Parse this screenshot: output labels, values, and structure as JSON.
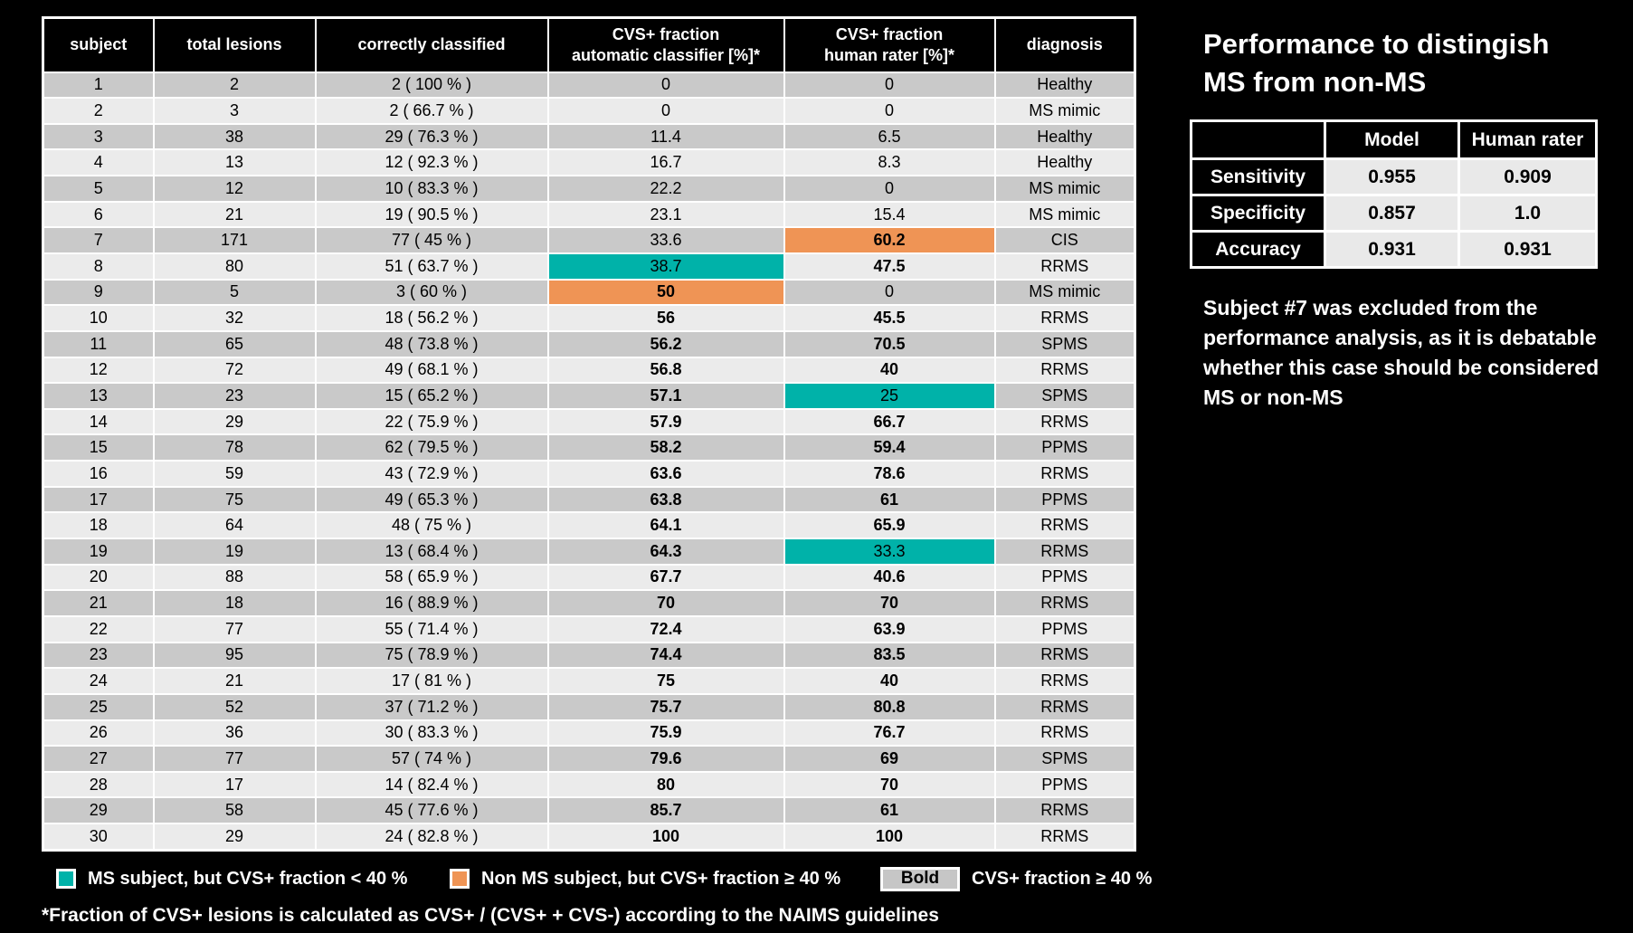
{
  "colors": {
    "teal": "#00b2a9",
    "orange": "#ef9455",
    "row_dark": "#c9c9c9",
    "row_light": "#ebebeb",
    "perf_cell_bg": "#e9e9e9",
    "bold_box_bg": "#c6c6c6"
  },
  "main_table": {
    "display_headers": [
      "subject",
      "total lesions",
      "correctly classified",
      "CVS+ fraction\nautomatic classifier [%]*",
      "CVS+ fraction\nhuman rater [%]*",
      "diagnosis"
    ],
    "cell_styles": [
      [
        "",
        ""
      ],
      [
        "",
        ""
      ],
      [
        "",
        ""
      ],
      [
        "",
        ""
      ],
      [
        "",
        ""
      ],
      [
        "",
        ""
      ],
      [
        "",
        "orange"
      ],
      [
        "teal",
        "b"
      ],
      [
        "orange",
        ""
      ],
      [
        "b",
        "b"
      ],
      [
        "b",
        "b"
      ],
      [
        "b",
        "b"
      ],
      [
        "b",
        "teal"
      ],
      [
        "b",
        "b"
      ],
      [
        "b",
        "b"
      ],
      [
        "b",
        "b"
      ],
      [
        "b",
        "b"
      ],
      [
        "b",
        "b"
      ],
      [
        "b",
        "teal"
      ],
      [
        "b",
        "b"
      ],
      [
        "b",
        "b"
      ],
      [
        "b",
        "b"
      ],
      [
        "b",
        "b"
      ],
      [
        "b",
        "b"
      ],
      [
        "b",
        "b"
      ],
      [
        "b",
        "b"
      ],
      [
        "b",
        "b"
      ],
      [
        "b",
        "b"
      ],
      [
        "b",
        "b"
      ],
      [
        "b",
        "b"
      ]
    ]
  },
  "legend": {
    "teal_label": "MS subject, but CVS+ fraction < 40 %",
    "orange_label": "Non MS subject, but CVS+ fraction ≥ 40 %",
    "bold_box_label": "Bold",
    "bold_label": "CVS+ fraction ≥ 40 %"
  },
  "footnote": "*Fraction of CVS+ lesions is calculated as CVS+ / (CVS+ + CVS-) according to the NAIMS guidelines",
  "side_panel": {
    "title": "Performance to distingish\nMS from non-MS",
    "note": "Subject #7 was excluded from the\nperformance analysis, as it is debatable\nwhether this case should be considered\nMS or non-MS"
  },
  "chart_data": [
    {
      "type": "table",
      "title": "CVS+ fraction per subject",
      "columns": [
        "subject",
        "total lesions",
        "correctly classified",
        "CVS+ fraction automatic classifier [%]*",
        "CVS+ fraction human rater [%]*",
        "diagnosis"
      ],
      "rows": [
        [
          1,
          2,
          "2 ( 100 % )",
          0,
          0,
          "Healthy"
        ],
        [
          2,
          3,
          "2 ( 66.7 % )",
          0,
          0,
          "MS mimic"
        ],
        [
          3,
          38,
          "29 ( 76.3 % )",
          11.4,
          6.5,
          "Healthy"
        ],
        [
          4,
          13,
          "12 ( 92.3 % )",
          16.7,
          8.3,
          "Healthy"
        ],
        [
          5,
          12,
          "10 ( 83.3 % )",
          22.2,
          0,
          "MS mimic"
        ],
        [
          6,
          21,
          "19 ( 90.5 % )",
          23.1,
          15.4,
          "MS mimic"
        ],
        [
          7,
          171,
          "77 ( 45 % )",
          33.6,
          60.2,
          "CIS"
        ],
        [
          8,
          80,
          "51 ( 63.7 % )",
          38.7,
          47.5,
          "RRMS"
        ],
        [
          9,
          5,
          "3 ( 60 % )",
          50,
          0,
          "MS mimic"
        ],
        [
          10,
          32,
          "18 ( 56.2 % )",
          56,
          45.5,
          "RRMS"
        ],
        [
          11,
          65,
          "48 ( 73.8 % )",
          56.2,
          70.5,
          "SPMS"
        ],
        [
          12,
          72,
          "49 ( 68.1 % )",
          56.8,
          40,
          "RRMS"
        ],
        [
          13,
          23,
          "15 ( 65.2 % )",
          57.1,
          25,
          "SPMS"
        ],
        [
          14,
          29,
          "22 ( 75.9 % )",
          57.9,
          66.7,
          "RRMS"
        ],
        [
          15,
          78,
          "62 ( 79.5 % )",
          58.2,
          59.4,
          "PPMS"
        ],
        [
          16,
          59,
          "43 ( 72.9 % )",
          63.6,
          78.6,
          "RRMS"
        ],
        [
          17,
          75,
          "49 ( 65.3 % )",
          63.8,
          61,
          "PPMS"
        ],
        [
          18,
          64,
          "48 ( 75 % )",
          64.1,
          65.9,
          "RRMS"
        ],
        [
          19,
          19,
          "13 ( 68.4 % )",
          64.3,
          33.3,
          "RRMS"
        ],
        [
          20,
          88,
          "58 ( 65.9 % )",
          67.7,
          40.6,
          "PPMS"
        ],
        [
          21,
          18,
          "16 ( 88.9 % )",
          70,
          70,
          "RRMS"
        ],
        [
          22,
          77,
          "55 ( 71.4 % )",
          72.4,
          63.9,
          "PPMS"
        ],
        [
          23,
          95,
          "75 ( 78.9 % )",
          74.4,
          83.5,
          "RRMS"
        ],
        [
          24,
          21,
          "17 ( 81 % )",
          75,
          40,
          "RRMS"
        ],
        [
          25,
          52,
          "37 ( 71.2 % )",
          75.7,
          80.8,
          "RRMS"
        ],
        [
          26,
          36,
          "30 ( 83.3 % )",
          75.9,
          76.7,
          "RRMS"
        ],
        [
          27,
          77,
          "57 ( 74 % )",
          79.6,
          69,
          "SPMS"
        ],
        [
          28,
          17,
          "14 ( 82.4 % )",
          80,
          70,
          "PPMS"
        ],
        [
          29,
          58,
          "45 ( 77.6 % )",
          85.7,
          61,
          "RRMS"
        ],
        [
          30,
          29,
          "24 ( 82.8 % )",
          100,
          100,
          "RRMS"
        ]
      ]
    },
    {
      "type": "table",
      "title": "Performance to distingish MS from non-MS",
      "columns": [
        "",
        "Model",
        "Human rater"
      ],
      "rows": [
        [
          "Sensitivity",
          "0.955",
          "0.909"
        ],
        [
          "Specificity",
          "0.857",
          "1.0"
        ],
        [
          "Accuracy",
          "0.931",
          "0.931"
        ]
      ]
    }
  ]
}
